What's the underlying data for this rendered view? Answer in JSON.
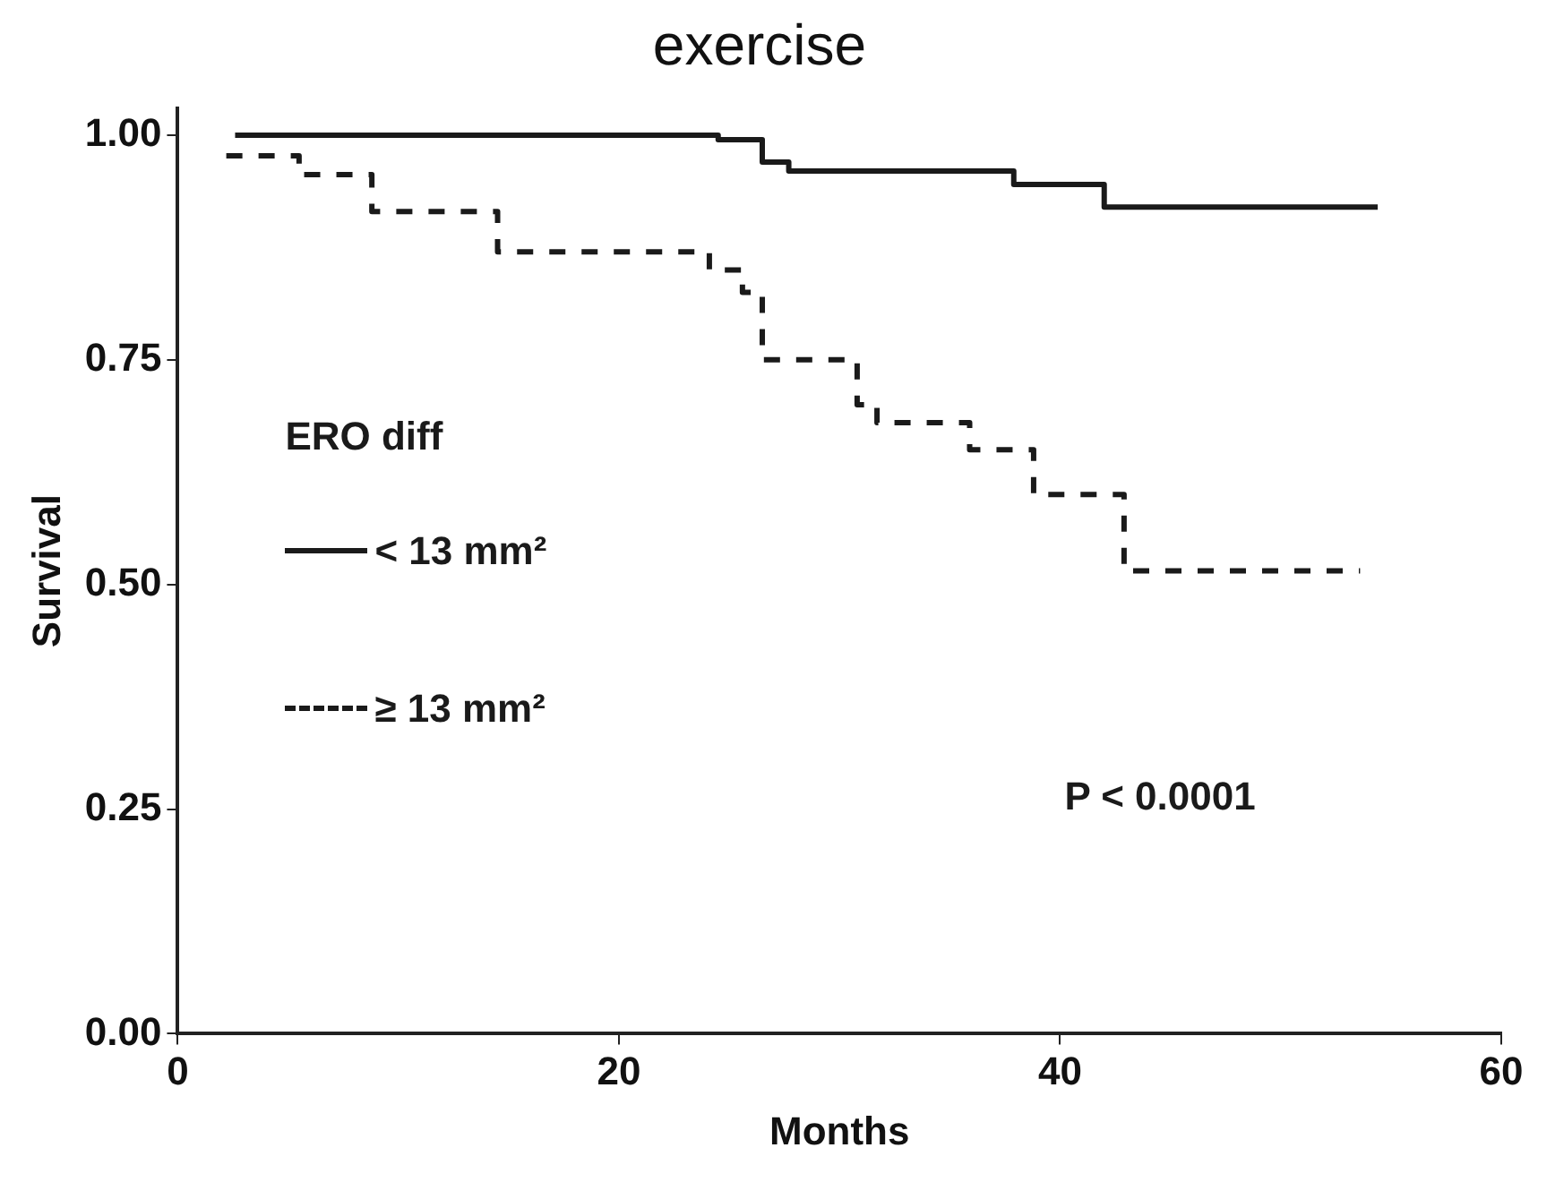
{
  "chart_data": {
    "type": "step",
    "title": "exercise",
    "xlabel": "Months",
    "ylabel": "Survival",
    "legend_title": "ERO diff",
    "series": [
      {
        "name": "< 13 mm²",
        "color": "#1a1a1a",
        "line_style": "solid",
        "x": [
          2.6,
          24.5,
          26.5,
          27.7,
          37.9,
          42,
          54.4
        ],
        "values": [
          1.0,
          0.995,
          0.97,
          0.96,
          0.945,
          0.92,
          0.92
        ]
      },
      {
        "name": "≥ 13 mm²",
        "color": "#1a1a1a",
        "line_style": "dashed",
        "x": [
          2.2,
          5.5,
          8.8,
          14.5,
          24.1,
          25.6,
          26.5,
          30.8,
          31.7,
          35.9,
          38.8,
          42.9,
          53.6
        ],
        "values": [
          0.977,
          0.956,
          0.915,
          0.87,
          0.85,
          0.825,
          0.75,
          0.7,
          0.68,
          0.65,
          0.6,
          0.515,
          0.515
        ]
      }
    ],
    "xlim": [
      0,
      60
    ],
    "xticks": [
      0,
      20,
      40,
      60
    ],
    "ylim": [
      0,
      1.03
    ],
    "yticks": [
      {
        "value": 0,
        "label": "0.00"
      },
      {
        "value": 0.25,
        "label": "0.25"
      },
      {
        "value": 0.5,
        "label": "0.50"
      },
      {
        "value": 0.75,
        "label": "0.75"
      },
      {
        "value": 1,
        "label": "1.00"
      }
    ],
    "grid": false,
    "legend": "center left",
    "marker": "none",
    "annotations": [
      "P < 0.0001"
    ]
  }
}
